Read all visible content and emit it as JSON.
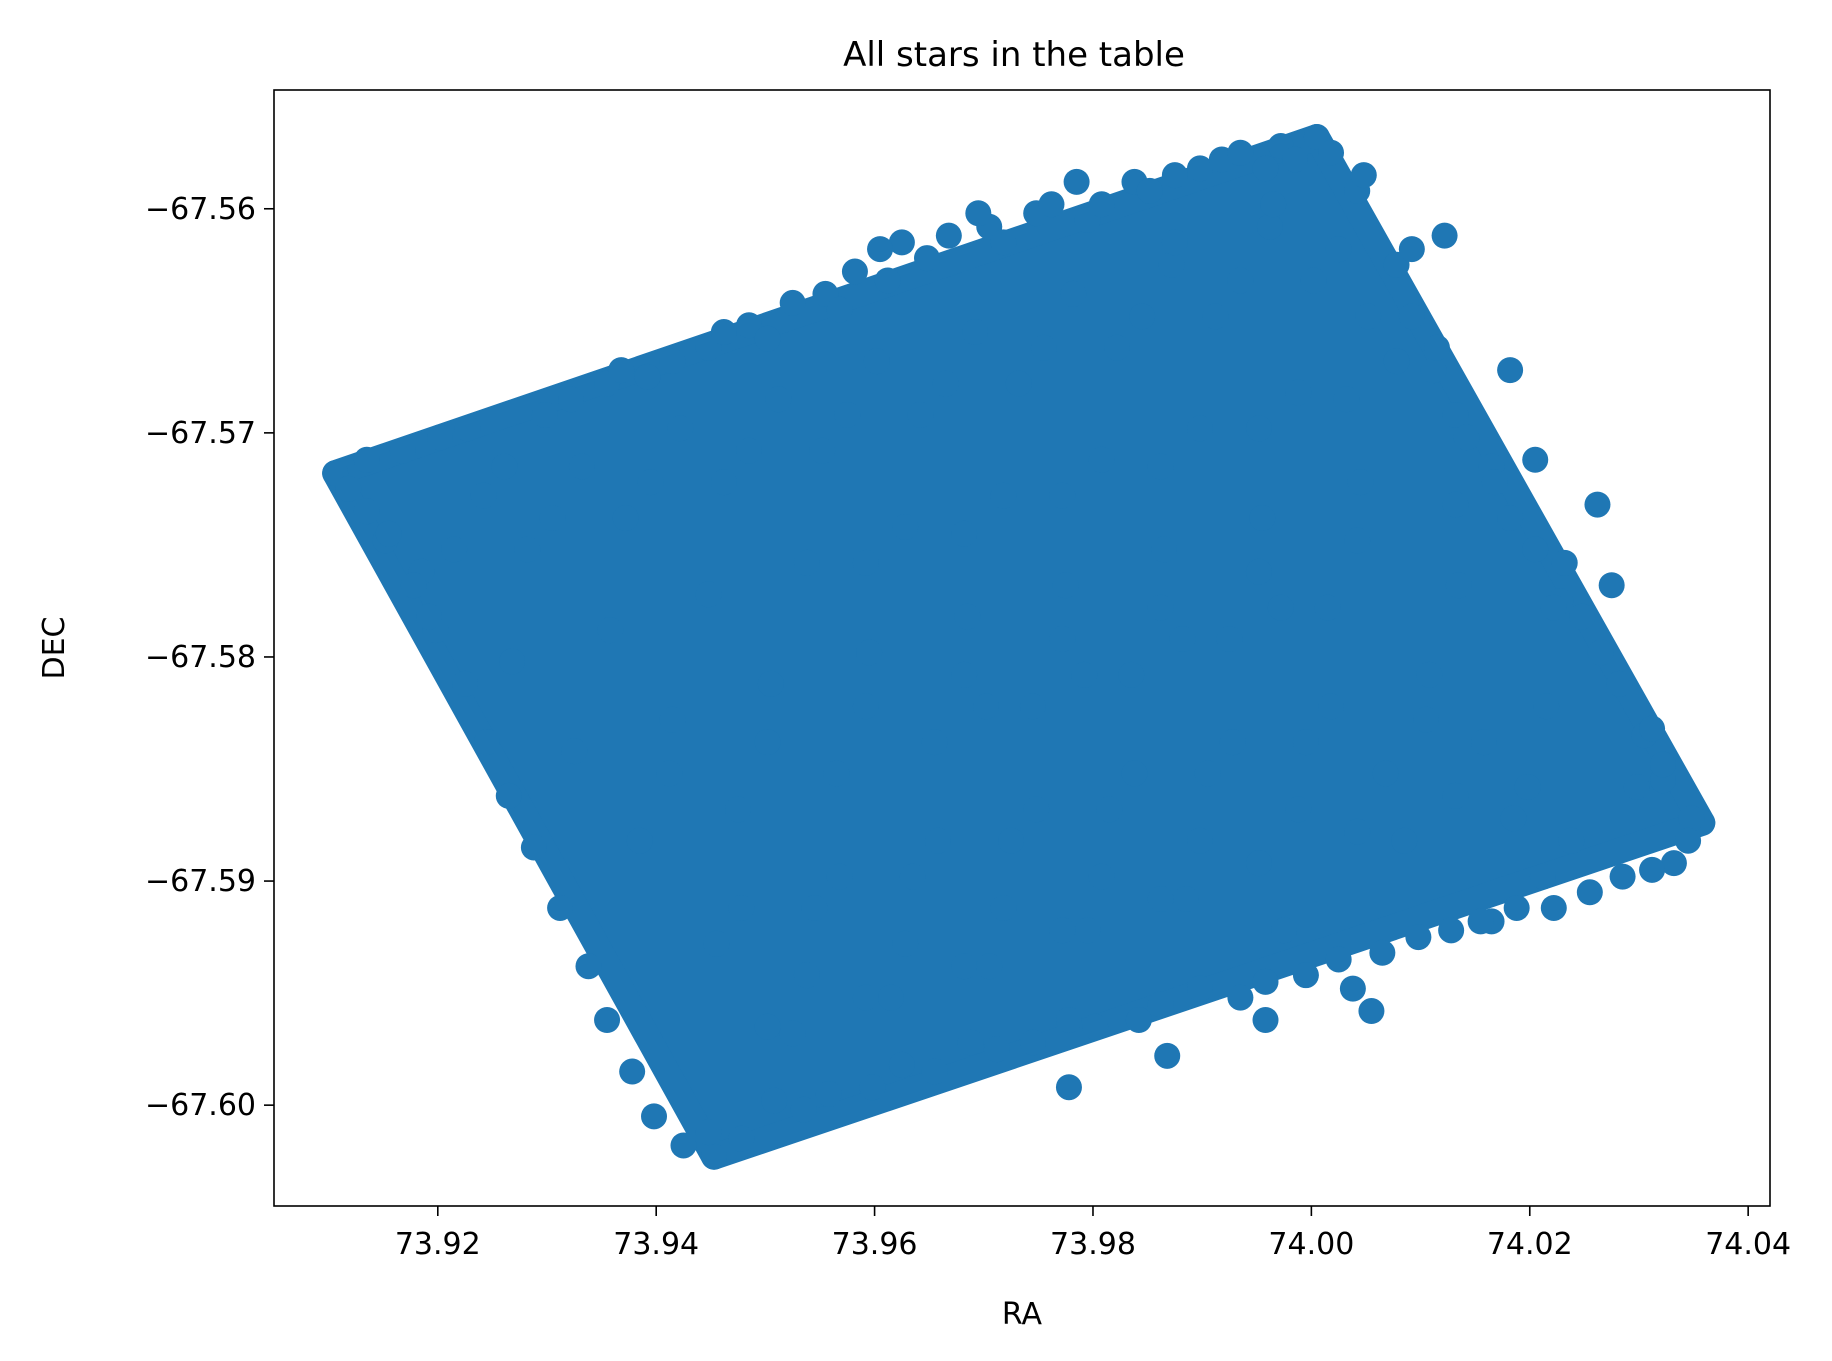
{
  "chart_data": {
    "type": "scatter",
    "title": "All stars in the table",
    "xlabel": "RA",
    "ylabel": "DEC",
    "xlim": [
      73.905,
      74.042
    ],
    "ylim": [
      -67.6045,
      -67.5547
    ],
    "xticks": [
      73.92,
      73.94,
      73.96,
      73.98,
      74.0,
      74.02,
      74.04
    ],
    "xtick_labels": [
      "73.92",
      "73.94",
      "73.96",
      "73.98",
      "74.00",
      "74.02",
      "74.04"
    ],
    "yticks": [
      -67.56,
      -67.57,
      -67.58,
      -67.59,
      -67.6
    ],
    "ytick_labels": [
      "−67.56",
      "−67.57",
      "−67.58",
      "−67.59",
      "−67.60"
    ],
    "grid": false,
    "legend": "none",
    "marker_color": "#1f77b4",
    "series": [
      {
        "points_note": "",
        "footprint_corners": [
          [
            73.9106,
            -67.5718
          ],
          [
            74.0005,
            -67.5568
          ],
          [
            74.0358,
            -67.5874
          ],
          [
            73.9453,
            -67.6023
          ]
        ],
        "x": [
          73.9106,
          74.0005,
          74.0358,
          73.9453,
          73.9118,
          73.9135,
          73.9152,
          73.9168,
          73.9185,
          73.9202,
          73.9227,
          73.9261,
          73.9298,
          73.9322,
          73.9355,
          73.9368,
          73.9392,
          73.9415,
          73.9448,
          73.9462,
          73.9485,
          73.9502,
          73.9525,
          73.9555,
          73.9568,
          73.9582,
          73.9612,
          73.9625,
          73.9648,
          73.9668,
          73.9705,
          73.9718,
          73.9748,
          73.9762,
          73.9795,
          73.9808,
          73.9838,
          73.9852,
          73.9875,
          73.9898,
          73.9918,
          73.9935,
          73.9958,
          73.9972,
          73.9985,
          74.0018,
          74.0042,
          74.0078,
          74.0092,
          74.0112,
          74.0132,
          74.0165,
          74.0182,
          74.0205,
          74.0228,
          74.0265,
          74.0282,
          74.0305,
          74.0322,
          74.0348,
          74.0345,
          74.0332,
          74.0312,
          74.0285,
          74.0255,
          74.0222,
          74.0188,
          74.0165,
          74.0128,
          74.0098,
          74.0065,
          74.0025,
          73.9995,
          73.9958,
          73.9935,
          73.9898,
          73.9862,
          73.9842,
          73.9802,
          73.9778,
          73.9745,
          73.9712,
          73.9688,
          73.9655,
          73.9625,
          73.9598,
          73.9558,
          73.9535,
          73.9508,
          73.9478,
          73.9448,
          73.9425,
          73.9398,
          73.9378,
          73.9355,
          73.9338,
          73.9312,
          73.9288,
          73.9265,
          73.9245,
          73.9225,
          73.9198,
          73.9178,
          73.9155,
          73.9135,
          73.9215,
          73.9305,
          73.9395,
          73.9485,
          73.9575,
          73.9665,
          73.9755,
          73.9845,
          73.9935,
          74.0025,
          74.0115,
          74.0205,
          74.0275,
          73.9268,
          73.9358,
          73.9448,
          73.9538,
          73.9628,
          73.9718,
          73.9808,
          73.9898,
          73.9988,
          74.0078,
          74.0168,
          74.0248,
          73.9325,
          73.9415,
          73.9505,
          73.9595,
          73.9685,
          73.9775,
          73.9865,
          73.9955,
          74.0045,
          74.0135,
          74.0215,
          73.9385,
          73.9475,
          73.9565,
          73.9655,
          73.9745,
          73.9835,
          73.9925,
          74.0015,
          74.0105,
          74.0185,
          73.9455,
          73.9545,
          73.9635,
          73.9725,
          73.9815,
          73.9905,
          73.9995,
          74.0085,
          74.0155,
          73.9525,
          73.9615,
          73.9705,
          73.9795,
          73.9885,
          73.9975,
          74.0055,
          73.9192,
          73.9282,
          73.9372,
          73.9462,
          73.9552,
          73.9642,
          73.9732,
          73.9822,
          73.9912,
          74.0002,
          74.0092,
          74.0182,
          74.0262,
          73.9592,
          73.9682,
          73.9772,
          73.9862,
          73.9952,
          74.0032,
          73.9412,
          73.9502,
          73.9592,
          73.9682,
          73.9772,
          73.9862,
          73.9952,
          74.0042,
          74.0132,
          74.0222,
          74.0312,
          73.9478,
          73.9568,
          73.9658,
          73.9748,
          73.9838,
          73.9928,
          74.0018,
          74.0108,
          74.0198,
          73.9538,
          73.9628,
          73.9718,
          73.9808,
          73.9898,
          73.9988,
          74.0068,
          74.0158,
          74.0238,
          74.0298,
          73.9242,
          73.9332,
          73.9422,
          73.9512,
          73.9602,
          73.9692,
          73.9782,
          73.9872,
          73.9962,
          74.0052,
          74.0142,
          74.0232,
          74.0322,
          73.9502,
          73.9592,
          73.9682,
          73.9772,
          73.9862,
          73.9952,
          74.0042,
          74.0132,
          74.0212,
          73.9605,
          73.9695,
          73.9785,
          73.9875,
          73.9965,
          74.0048,
          74.0122,
          73.9702,
          73.9792,
          73.9882,
          73.9972,
          73.9778,
          73.9868,
          73.9958,
          74.0038
        ],
        "y": [
          -67.5718,
          -67.5568,
          -67.5874,
          -67.6023,
          -67.5725,
          -67.5712,
          -67.5748,
          -67.5708,
          -67.5762,
          -67.5702,
          -67.5698,
          -67.5715,
          -67.5692,
          -67.5685,
          -67.5678,
          -67.5672,
          -67.5675,
          -67.5668,
          -67.5662,
          -67.5655,
          -67.5652,
          -67.5658,
          -67.5642,
          -67.5638,
          -67.5645,
          -67.5628,
          -67.5632,
          -67.5615,
          -67.5622,
          -67.5612,
          -67.5608,
          -67.5615,
          -67.5602,
          -67.5598,
          -67.5605,
          -67.5598,
          -67.5588,
          -67.5592,
          -67.5585,
          -67.5582,
          -67.5578,
          -67.5575,
          -67.5582,
          -67.5572,
          -67.5578,
          -67.5575,
          -67.5592,
          -67.5625,
          -67.5648,
          -67.5672,
          -67.5692,
          -67.5715,
          -67.5738,
          -67.5752,
          -67.5775,
          -67.5798,
          -67.5812,
          -67.5835,
          -67.5855,
          -67.5872,
          -67.5882,
          -67.5892,
          -67.5895,
          -67.5898,
          -67.5905,
          -67.5912,
          -67.5912,
          -67.5918,
          -67.5922,
          -67.5925,
          -67.5932,
          -67.5935,
          -67.5942,
          -67.5945,
          -67.5952,
          -67.5948,
          -67.5955,
          -67.5962,
          -67.5965,
          -67.5962,
          -67.5972,
          -67.5975,
          -67.5972,
          -67.5985,
          -67.5982,
          -67.5992,
          -67.5995,
          -67.6002,
          -67.5998,
          -67.6015,
          -67.6012,
          -67.6018,
          -67.6005,
          -67.5985,
          -67.5962,
          -67.5938,
          -67.5912,
          -67.5885,
          -67.5862,
          -67.5838,
          -67.5812,
          -67.5788,
          -67.5768,
          -67.5745,
          -67.5735,
          -67.5752,
          -67.5738,
          -67.5722,
          -67.5708,
          -67.5692,
          -67.5678,
          -67.5662,
          -67.5648,
          -67.5632,
          -67.5618,
          -67.5662,
          -67.5712,
          -67.5768,
          -67.5802,
          -67.5788,
          -67.5772,
          -67.5758,
          -67.5742,
          -67.5728,
          -67.5712,
          -67.5698,
          -67.5682,
          -67.5668,
          -67.5722,
          -67.5782,
          -67.5842,
          -67.5828,
          -67.5812,
          -67.5798,
          -67.5782,
          -67.5768,
          -67.5752,
          -67.5738,
          -67.5722,
          -67.5768,
          -67.5822,
          -67.5882,
          -67.5868,
          -67.5852,
          -67.5838,
          -67.5822,
          -67.5808,
          -67.5792,
          -67.5778,
          -67.5828,
          -67.5872,
          -67.5928,
          -67.5912,
          -67.5898,
          -67.5882,
          -67.5868,
          -67.5852,
          -67.5838,
          -67.5882,
          -67.5918,
          -67.5968,
          -67.5952,
          -67.5938,
          -67.5922,
          -67.5908,
          -67.5922,
          -67.5958,
          -67.5782,
          -67.5752,
          -67.5738,
          -67.5722,
          -67.5708,
          -67.5692,
          -67.5678,
          -67.5662,
          -67.5648,
          -67.5632,
          -67.5618,
          -67.5672,
          -67.5732,
          -67.5758,
          -67.5745,
          -67.5728,
          -67.5715,
          -67.5698,
          -67.5685,
          -67.5852,
          -67.5838,
          -67.5822,
          -67.5808,
          -67.5792,
          -67.5778,
          -67.5762,
          -67.5748,
          -67.5732,
          -67.5778,
          -67.5832,
          -67.5912,
          -67.5898,
          -67.5882,
          -67.5868,
          -67.5852,
          -67.5838,
          -67.5822,
          -67.5808,
          -67.5858,
          -67.5942,
          -67.5928,
          -67.5912,
          -67.5898,
          -67.5882,
          -67.5868,
          -67.5852,
          -67.5838,
          -67.5882,
          -67.5858,
          -67.5728,
          -67.5715,
          -67.5698,
          -67.5685,
          -67.5668,
          -67.5655,
          -67.5638,
          -67.5625,
          -67.5608,
          -67.5648,
          -67.5702,
          -67.5758,
          -67.5848,
          -67.5965,
          -67.5952,
          -67.5938,
          -67.5922,
          -67.5908,
          -67.5892,
          -67.5878,
          -67.5862,
          -67.5898,
          -67.5618,
          -67.5602,
          -67.5588,
          -67.5615,
          -67.5598,
          -67.5585,
          -67.5612,
          -67.5822,
          -67.5808,
          -67.5792,
          -67.5778,
          -67.5992,
          -67.5978,
          -67.5962,
          -67.5948
        ]
      }
    ]
  }
}
